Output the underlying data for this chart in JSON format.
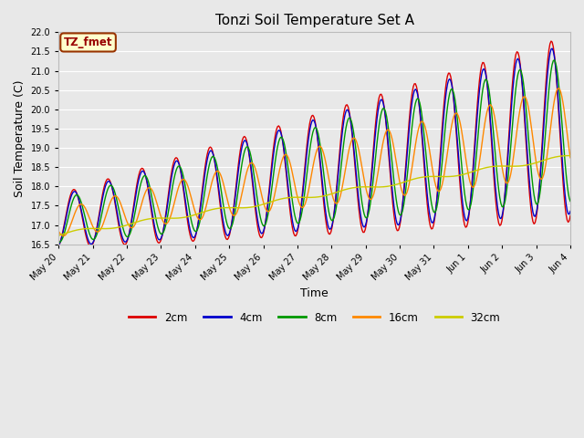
{
  "title": "Tonzi Soil Temperature Set A",
  "xlabel": "Time",
  "ylabel": "Soil Temperature (C)",
  "ylim": [
    16.5,
    22.0
  ],
  "fig_facecolor": "#e8e8e8",
  "ax_facecolor": "#e8e8e8",
  "annotation_text": "TZ_fmet",
  "annotation_bg": "#ffffcc",
  "annotation_border": "#993300",
  "annotation_text_color": "#990000",
  "colors": {
    "2cm": "#dd0000",
    "4cm": "#0000cc",
    "8cm": "#009900",
    "16cm": "#ff8800",
    "32cm": "#cccc00"
  },
  "legend_labels": [
    "2cm",
    "4cm",
    "8cm",
    "16cm",
    "32cm"
  ],
  "xtick_labels": [
    "May 20",
    "May 21",
    "May 22",
    "May 23",
    "May 24",
    "May 25",
    "May 26",
    "May 27",
    "May 28",
    "May 29",
    "May 30",
    "May 31",
    "Jun 1",
    "Jun 2",
    "Jun 3",
    "Jun 4"
  ],
  "num_points": 480,
  "grid_color": "#ffffff",
  "tick_fontsize": 7,
  "label_fontsize": 9,
  "title_fontsize": 11
}
